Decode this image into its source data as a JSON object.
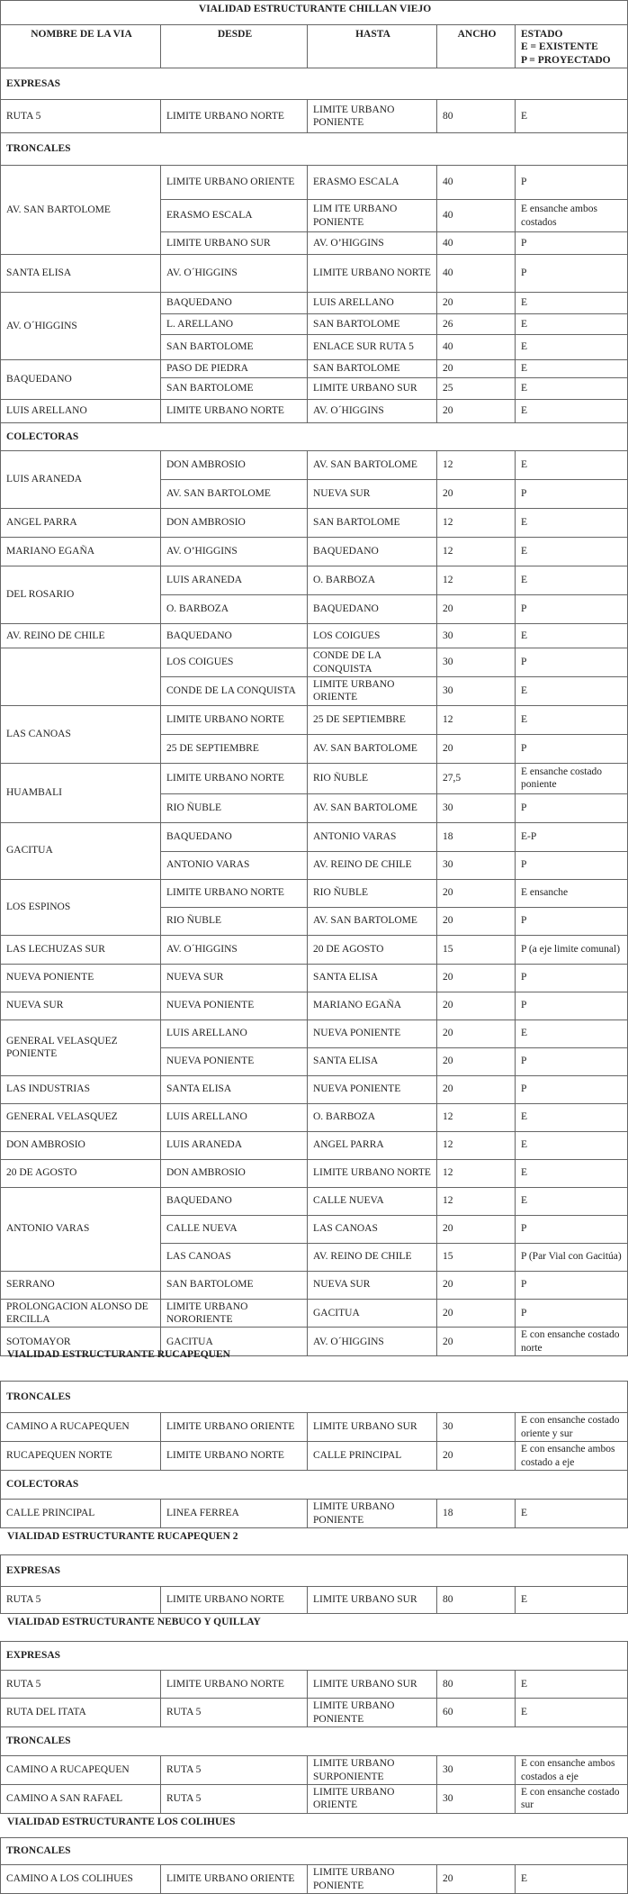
{
  "title": "VIALIDAD  ESTRUCTURANTE  CHILLAN VIEJO",
  "columns": {
    "nombre": "NOMBRE DE LA VIA",
    "desde": "DESDE",
    "hasta": "HASTA",
    "ancho": "ANCHO",
    "estado": [
      "ESTADO",
      "E = EXISTENTE",
      "P = PROYECTADO"
    ]
  },
  "sections": [
    {
      "heading": "",
      "blocks": [
        {
          "category": "EXPRESAS",
          "groups": [
            {
              "name": "RUTA 5",
              "segments": [
                {
                  "desde": "LIMITE URBANO NORTE",
                  "hasta": "LIMITE URBANO PONIENTE",
                  "ancho": "80",
                  "estado": "E"
                }
              ]
            }
          ]
        },
        {
          "category": "TRONCALES",
          "groups": [
            {
              "name": "AV. SAN BARTOLOME",
              "segments": [
                {
                  "desde": "LIMITE URBANO ORIENTE",
                  "hasta": "ERASMO ESCALA",
                  "ancho": "40",
                  "estado": "P"
                },
                {
                  "desde": "ERASMO ESCALA",
                  "hasta": "LIM ITE URBANO PONIENTE",
                  "ancho": "40",
                  "estado": "E  ensanche ambos costados"
                },
                {
                  "desde": "LIMITE URBANO SUR",
                  "hasta": "AV. O’HIGGINS",
                  "ancho": "40",
                  "estado": "P"
                }
              ]
            },
            {
              "name": "SANTA ELISA",
              "segments": [
                {
                  "desde": "AV. O´HIGGINS",
                  "hasta": "LIMITE URBANO NORTE",
                  "ancho": "40",
                  "estado": "P"
                }
              ]
            },
            {
              "name": "AV. O´HIGGINS",
              "segments": [
                {
                  "desde": "BAQUEDANO",
                  "hasta": "LUIS  ARELLANO",
                  "ancho": "20",
                  "estado": "E"
                },
                {
                  "desde": "L. ARELLANO",
                  "hasta": "SAN BARTOLOME",
                  "ancho": "26",
                  "estado": "E"
                },
                {
                  "desde": "SAN BARTOLOME",
                  "hasta": "ENLACE SUR RUTA 5",
                  "ancho": "40",
                  "estado": "E"
                }
              ]
            },
            {
              "name": "BAQUEDANO",
              "segments": [
                {
                  "desde": "PASO DE PIEDRA",
                  "hasta": "SAN BARTOLOME",
                  "ancho": "20",
                  "estado": "E"
                },
                {
                  "desde": "SAN BARTOLOME",
                  "hasta": "LIMITE URBANO SUR",
                  "ancho": "25",
                  "estado": "E"
                }
              ]
            },
            {
              "name": "LUIS ARELLANO",
              "segments": [
                {
                  "desde": "LIMITE URBANO NORTE",
                  "hasta": "AV. O´HIGGINS",
                  "ancho": "20",
                  "estado": "E"
                }
              ]
            }
          ]
        },
        {
          "category": "COLECTORAS",
          "groups": [
            {
              "name": "LUIS ARANEDA",
              "segments": [
                {
                  "desde": "DON AMBROSIO",
                  "hasta": "AV. SAN BARTOLOME",
                  "ancho": "12",
                  "estado": "E"
                },
                {
                  "desde": "AV. SAN BARTOLOME",
                  "hasta": "NUEVA SUR",
                  "ancho": "20",
                  "estado": "P"
                }
              ]
            },
            {
              "name": "ANGEL PARRA",
              "segments": [
                {
                  "desde": "DON AMBROSIO",
                  "hasta": "SAN BARTOLOME",
                  "ancho": "12",
                  "estado": "E"
                }
              ]
            },
            {
              "name": "MARIANO EGAÑA",
              "segments": [
                {
                  "desde": "AV. O’HIGGINS",
                  "hasta": "BAQUEDANO",
                  "ancho": "12",
                  "estado": "E"
                }
              ]
            },
            {
              "name": "DEL ROSARIO",
              "segments": [
                {
                  "desde": "LUIS ARANEDA",
                  "hasta": "O. BARBOZA",
                  "ancho": "12",
                  "estado": "E"
                },
                {
                  "desde": "O. BARBOZA",
                  "hasta": "BAQUEDANO",
                  "ancho": "20",
                  "estado": "P"
                }
              ]
            },
            {
              "name": "AV. REINO DE CHILE",
              "segments": [
                {
                  "desde": "BAQUEDANO",
                  "hasta": "LOS COIGUES",
                  "ancho": "30",
                  "estado": "E"
                }
              ]
            },
            {
              "name": "",
              "segments": [
                {
                  "desde": "LOS COIGUES",
                  "hasta": "CONDE DE LA CONQUISTA",
                  "ancho": "30",
                  "estado": "P"
                },
                {
                  "desde": "CONDE DE LA CONQUISTA",
                  "hasta": "LIMITE URBANO ORIENTE",
                  "ancho": "30",
                  "estado": "E"
                }
              ]
            },
            {
              "name": "LAS CANOAS",
              "segments": [
                {
                  "desde": "LIMITE URBANO NORTE",
                  "hasta": "25 DE SEPTIEMBRE",
                  "ancho": "12",
                  "estado": "E"
                },
                {
                  "desde": "25 DE SEPTIEMBRE",
                  "hasta": "AV. SAN BARTOLOME",
                  "ancho": "20",
                  "estado": "P"
                }
              ]
            },
            {
              "name": "HUAMBALI",
              "segments": [
                {
                  "desde": "LIMITE URBANO NORTE",
                  "hasta": "RIO ÑUBLE",
                  "ancho": "27,5",
                  "estado": "E  ensanche costado poniente"
                },
                {
                  "desde": "RIO ÑUBLE",
                  "hasta": "AV. SAN BARTOLOME",
                  "ancho": "30",
                  "estado": "P"
                }
              ]
            },
            {
              "name": "GACITUA",
              "segments": [
                {
                  "desde": "BAQUEDANO",
                  "hasta": "ANTONIO VARAS",
                  "ancho": "18",
                  "estado": "E-P"
                },
                {
                  "desde": "ANTONIO VARAS",
                  "hasta": "AV. REINO DE CHILE",
                  "ancho": "30",
                  "estado": "P"
                }
              ]
            },
            {
              "name": "LOS ESPINOS",
              "segments": [
                {
                  "desde": "LIMITE URBANO NORTE",
                  "hasta": "RIO ÑUBLE",
                  "ancho": "20",
                  "estado": "E  ensanche"
                },
                {
                  "desde": "RIO ÑUBLE",
                  "hasta": "AV. SAN BARTOLOME",
                  "ancho": "20",
                  "estado": "P"
                }
              ]
            },
            {
              "name": "LAS LECHUZAS SUR",
              "segments": [
                {
                  "desde": "AV. O´HIGGINS",
                  "hasta": "20 DE AGOSTO",
                  "ancho": "15",
                  "estado": "P (a eje limite comunal)"
                }
              ]
            },
            {
              "name": "NUEVA PONIENTE",
              "segments": [
                {
                  "desde": "NUEVA SUR",
                  "hasta": "SANTA ELISA",
                  "ancho": "20",
                  "estado": "P"
                }
              ]
            },
            {
              "name": "NUEVA SUR",
              "segments": [
                {
                  "desde": "NUEVA PONIENTE",
                  "hasta": "MARIANO EGAÑA",
                  "ancho": "20",
                  "estado": "P"
                }
              ]
            },
            {
              "name": "GENERAL VELASQUEZ PONIENTE",
              "segments": [
                {
                  "desde": "LUIS ARELLANO",
                  "hasta": "NUEVA PONIENTE",
                  "ancho": "20",
                  "estado": "E"
                },
                {
                  "desde": "NUEVA PONIENTE",
                  "hasta": "SANTA ELISA",
                  "ancho": "20",
                  "estado": "P"
                }
              ]
            },
            {
              "name": "LAS INDUSTRIAS",
              "segments": [
                {
                  "desde": "SANTA ELISA",
                  "hasta": "NUEVA PONIENTE",
                  "ancho": "20",
                  "estado": "P"
                }
              ]
            },
            {
              "name": "GENERAL VELASQUEZ",
              "segments": [
                {
                  "desde": "LUIS ARELLANO",
                  "hasta": "O. BARBOZA",
                  "ancho": "12",
                  "estado": "E"
                }
              ]
            },
            {
              "name": "DON AMBROSIO",
              "segments": [
                {
                  "desde": "LUIS ARANEDA",
                  "hasta": "ANGEL PARRA",
                  "ancho": "12",
                  "estado": "E"
                }
              ]
            },
            {
              "name": "20 DE AGOSTO",
              "segments": [
                {
                  "desde": "DON AMBROSIO",
                  "hasta": "LIMITE URBANO NORTE",
                  "ancho": "12",
                  "estado": "E"
                }
              ]
            },
            {
              "name": "ANTONIO VARAS",
              "segments": [
                {
                  "desde": "BAQUEDANO",
                  "hasta": "CALLE NUEVA",
                  "ancho": "12",
                  "estado": "E"
                },
                {
                  "desde": "CALLE NUEVA",
                  "hasta": "LAS CANOAS",
                  "ancho": "20",
                  "estado": "P"
                },
                {
                  "desde": "LAS CANOAS",
                  "hasta": "AV. REINO DE CHILE",
                  "ancho": "15",
                  "estado": "P (Par Vial con Gacitúa)"
                }
              ]
            },
            {
              "name": "SERRANO",
              "segments": [
                {
                  "desde": "SAN BARTOLOME",
                  "hasta": "NUEVA SUR",
                  "ancho": "20",
                  "estado": "P"
                }
              ]
            },
            {
              "name": "PROLONGACION ALONSO DE ERCILLA",
              "segments": [
                {
                  "desde": "LIMITE URBANO NORORIENTE",
                  "hasta": "GACITUA",
                  "ancho": "20",
                  "estado": "P"
                }
              ]
            },
            {
              "name": "SOTOMAYOR",
              "segments": [
                {
                  "desde": "GACITUA",
                  "hasta": "AV. O´HIGGINS",
                  "ancho": "20",
                  "estado": "E  con ensanche costado norte"
                }
              ]
            }
          ]
        }
      ]
    },
    {
      "heading": "VIALIDAD  ESTRUCTURANTE  RUCAPEQUEN",
      "blocks": [
        {
          "category": "TRONCALES",
          "groups": [
            {
              "name": "CAMINO A RUCAPEQUEN",
              "segments": [
                {
                  "desde": "LIMITE URBANO ORIENTE",
                  "hasta": "LIMITE URBANO SUR",
                  "ancho": "30",
                  "estado": "E con ensanche costado oriente y sur"
                }
              ]
            },
            {
              "name": "RUCAPEQUEN NORTE",
              "segments": [
                {
                  "desde": "LIMITE URBANO NORTE",
                  "hasta": "CALLE PRINCIPAL",
                  "ancho": "20",
                  "estado": "E con ensanche  ambos costado a eje"
                }
              ]
            }
          ]
        },
        {
          "category": "COLECTORAS",
          "groups": [
            {
              "name": "CALLE PRINCIPAL",
              "segments": [
                {
                  "desde": "LINEA FERREA",
                  "hasta": "LIMITE URBANO PONIENTE",
                  "ancho": "18",
                  "estado": "E"
                }
              ]
            }
          ]
        }
      ]
    },
    {
      "heading": "VIALIDAD  ESTRUCTURANTE  RUCAPEQUEN 2",
      "blocks": [
        {
          "category": "EXPRESAS",
          "groups": [
            {
              "name": "RUTA 5",
              "segments": [
                {
                  "desde": "LIMITE URBANO NORTE",
                  "hasta": "LIMITE URBANO SUR",
                  "ancho": "80",
                  "estado": "E"
                }
              ]
            }
          ]
        }
      ]
    },
    {
      "heading": "VIALIDAD  ESTRUCTURANTE NEBUCO Y QUILLAY",
      "blocks": [
        {
          "category": "EXPRESAS",
          "groups": [
            {
              "name": "RUTA 5",
              "segments": [
                {
                  "desde": "LIMITE URBANO NORTE",
                  "hasta": "LIMITE URBANO SUR",
                  "ancho": "80",
                  "estado": "E"
                }
              ]
            },
            {
              "name": "RUTA DEL ITATA",
              "segments": [
                {
                  "desde": "RUTA 5",
                  "hasta": "LIMITE URBANO PONIENTE",
                  "ancho": "60",
                  "estado": "E"
                }
              ]
            }
          ]
        },
        {
          "category": "TRONCALES",
          "groups": [
            {
              "name": "CAMINO A RUCAPEQUEN",
              "segments": [
                {
                  "desde": "RUTA 5",
                  "hasta": "LIMITE URBANO SURPONIENTE",
                  "ancho": "30",
                  "estado": "E con ensanche ambos costados a eje"
                }
              ]
            },
            {
              "name": "CAMINO A SAN RAFAEL",
              "segments": [
                {
                  "desde": "RUTA 5",
                  "hasta": "LIMITE URBANO ORIENTE",
                  "ancho": "30",
                  "estado": "E con ensanche costado sur"
                }
              ]
            }
          ]
        }
      ]
    },
    {
      "heading": "VIALIDAD  ESTRUCTURANTE LOS COLIHUES",
      "blocks": [
        {
          "category": "TRONCALES",
          "groups": [
            {
              "name": "CAMINO A LOS COLIHUES",
              "segments": [
                {
                  "desde": "LIMITE URBANO ORIENTE",
                  "hasta": "LIMITE URBANO PONIENTE",
                  "ancho": "20",
                  "estado": "E"
                }
              ]
            }
          ]
        }
      ]
    }
  ]
}
